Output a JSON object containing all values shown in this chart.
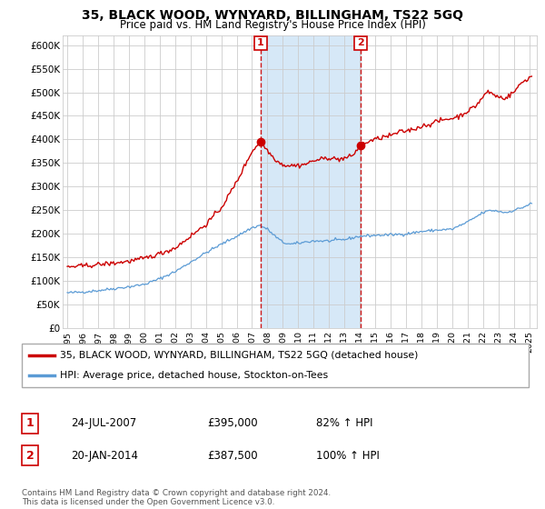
{
  "title": "35, BLACK WOOD, WYNYARD, BILLINGHAM, TS22 5GQ",
  "subtitle": "Price paid vs. HM Land Registry's House Price Index (HPI)",
  "ylim": [
    0,
    620000
  ],
  "yticks": [
    0,
    50000,
    100000,
    150000,
    200000,
    250000,
    300000,
    350000,
    400000,
    450000,
    500000,
    550000,
    600000
  ],
  "ytick_labels": [
    "£0",
    "£50K",
    "£100K",
    "£150K",
    "£200K",
    "£250K",
    "£300K",
    "£350K",
    "£400K",
    "£450K",
    "£500K",
    "£550K",
    "£600K"
  ],
  "legend_line1": "35, BLACK WOOD, WYNYARD, BILLINGHAM, TS22 5GQ (detached house)",
  "legend_line2": "HPI: Average price, detached house, Stockton-on-Tees",
  "sale1_label": "1",
  "sale1_date": "24-JUL-2007",
  "sale1_price": "£395,000",
  "sale1_hpi": "82% ↑ HPI",
  "sale2_label": "2",
  "sale2_date": "20-JAN-2014",
  "sale2_price": "£387,500",
  "sale2_hpi": "100% ↑ HPI",
  "footnote": "Contains HM Land Registry data © Crown copyright and database right 2024.\nThis data is licensed under the Open Government Licence v3.0.",
  "hpi_color": "#5b9bd5",
  "sale_color": "#cc0000",
  "plot_bg": "#ffffff",
  "grid_color": "#cccccc",
  "shade_color": "#d6e8f7",
  "sale1_x_year": 2007.56,
  "sale2_x_year": 2014.05,
  "sale1_y": 395000,
  "sale2_y": 387500,
  "xlim_left": 1994.7,
  "xlim_right": 2025.5
}
